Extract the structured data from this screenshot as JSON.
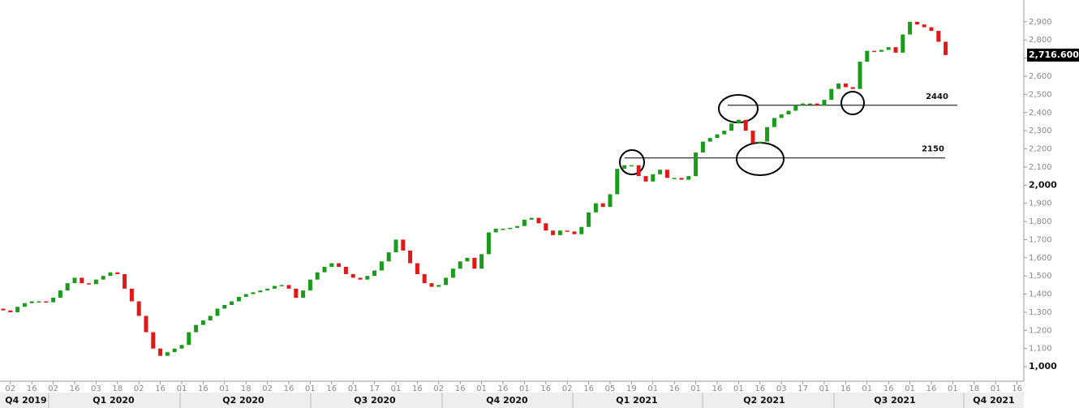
{
  "chart_data": {
    "type": "candlestick",
    "categories": [
      null,
      "02",
      null,
      null,
      "16",
      null,
      null,
      "02",
      null,
      null,
      "16",
      null,
      null,
      "03",
      null,
      null,
      "18",
      null,
      null,
      "02",
      null,
      null,
      "16",
      null,
      null,
      "01",
      null,
      null,
      "16",
      null,
      null,
      "01",
      null,
      null,
      "18",
      null,
      null,
      "02",
      null,
      null,
      "16",
      null,
      null,
      "01",
      null,
      null,
      "16",
      null,
      null,
      "01",
      null,
      null,
      "17",
      null,
      null,
      "01",
      null,
      null,
      "16",
      null,
      null,
      "02",
      null,
      null,
      "16",
      null,
      null,
      "01",
      null,
      null,
      "16",
      null,
      null,
      "01",
      null,
      null,
      "16",
      null,
      null,
      "02",
      null,
      null,
      "16",
      null,
      null,
      "05",
      null,
      null,
      "19",
      null,
      null,
      "01",
      null,
      null,
      "16",
      null,
      null,
      "01",
      null,
      null,
      "16",
      null,
      null,
      "01",
      null,
      null,
      "16",
      null,
      null,
      "03",
      null,
      null,
      "17",
      null,
      null,
      "01",
      null,
      null,
      "16",
      null,
      null,
      "01",
      null,
      null,
      "16",
      null,
      null,
      "01",
      null,
      null,
      "16",
      null,
      null,
      "01",
      null,
      null,
      "18",
      null,
      null,
      "01",
      null,
      null,
      "16",
      null
    ],
    "open": [
      1320,
      1310,
      1300,
      1330,
      1350,
      1360,
      1360,
      1355,
      1380,
      1420,
      1460,
      1490,
      1460,
      1455,
      1480,
      1500,
      1520,
      1510,
      1430,
      1360,
      1280,
      1190,
      1100,
      1060,
      1080,
      1100,
      1120,
      1190,
      1230,
      1255,
      1280,
      1320,
      1340,
      1360,
      1385,
      1400,
      1410,
      1420,
      1430,
      1445,
      1450,
      1430,
      1380,
      1420,
      1480,
      1520,
      1550,
      1570,
      1550,
      1510,
      1490,
      1480,
      1500,
      1530,
      1580,
      1630,
      1700,
      1640,
      1570,
      1510,
      1460,
      1440,
      1450,
      1490,
      1540,
      1580,
      1600,
      1540,
      1620,
      1740,
      1760,
      1760,
      1765,
      1775,
      1810,
      1820,
      1790,
      1750,
      1725,
      1750,
      1745,
      1730,
      1770,
      1850,
      1900,
      1880,
      1950,
      2090,
      2110,
      2110,
      2050,
      2020,
      2060,
      2085,
      2040,
      2040,
      2030,
      2050,
      2180,
      2240,
      2260,
      2280,
      2300,
      2340,
      2360,
      2300,
      2230,
      2240,
      2320,
      2370,
      2390,
      2410,
      2440,
      2450,
      2450,
      2440,
      2470,
      2530,
      2560,
      2540,
      2530,
      2680,
      2740,
      2735,
      2745,
      2760,
      2730,
      2830,
      2900,
      2885,
      2870,
      2850,
      2790,
      null,
      null,
      null,
      null,
      null,
      null,
      null,
      null,
      null,
      null,
      null
    ],
    "close": [
      1310,
      1300,
      1330,
      1350,
      1360,
      1360,
      1355,
      1380,
      1420,
      1460,
      1490,
      1460,
      1455,
      1480,
      1500,
      1520,
      1510,
      1430,
      1360,
      1280,
      1190,
      1100,
      1060,
      1080,
      1100,
      1120,
      1190,
      1230,
      1255,
      1280,
      1320,
      1340,
      1360,
      1385,
      1400,
      1410,
      1420,
      1430,
      1445,
      1450,
      1430,
      1380,
      1420,
      1480,
      1520,
      1550,
      1570,
      1550,
      1510,
      1490,
      1480,
      1500,
      1530,
      1580,
      1630,
      1700,
      1640,
      1570,
      1510,
      1460,
      1440,
      1450,
      1490,
      1540,
      1580,
      1600,
      1540,
      1620,
      1740,
      1760,
      1760,
      1765,
      1775,
      1810,
      1820,
      1790,
      1750,
      1725,
      1750,
      1745,
      1730,
      1770,
      1850,
      1900,
      1880,
      1950,
      2090,
      2110,
      2110,
      2050,
      2020,
      2060,
      2085,
      2040,
      2040,
      2030,
      2050,
      2180,
      2240,
      2260,
      2280,
      2300,
      2340,
      2360,
      2300,
      2230,
      2240,
      2320,
      2370,
      2390,
      2410,
      2440,
      2450,
      2450,
      2440,
      2470,
      2530,
      2560,
      2540,
      2530,
      2680,
      2740,
      2735,
      2745,
      2760,
      2730,
      2830,
      2900,
      2885,
      2870,
      2850,
      2790,
      2716.6,
      null,
      null,
      null,
      null,
      null,
      null,
      null,
      null,
      null,
      null,
      null
    ],
    "up_color": "#1a9c1a",
    "down_color": "#e01818",
    "ylim": [
      920,
      3020
    ],
    "yticks": [
      {
        "value": 1000,
        "label": "1,000"
      },
      {
        "value": 1100,
        "label": "1,100"
      },
      {
        "value": 1200,
        "label": "1,200"
      },
      {
        "value": 1300,
        "label": "1,300"
      },
      {
        "value": 1400,
        "label": "1,400"
      },
      {
        "value": 1500,
        "label": "1,500"
      },
      {
        "value": 1600,
        "label": "1,600"
      },
      {
        "value": 1700,
        "label": "1,700"
      },
      {
        "value": 1800,
        "label": "1,800"
      },
      {
        "value": 1900,
        "label": "1,900"
      },
      {
        "value": 2000,
        "label": "2,000"
      },
      {
        "value": 2100,
        "label": "2,100"
      },
      {
        "value": 2200,
        "label": "2,200"
      },
      {
        "value": 2300,
        "label": "2,300"
      },
      {
        "value": 2400,
        "label": "2,400"
      },
      {
        "value": 2500,
        "label": "2,500"
      },
      {
        "value": 2600,
        "label": "2,600"
      },
      {
        "value": 2700,
        "label": "2,700"
      },
      {
        "value": 2800,
        "label": "2,800"
      },
      {
        "value": 2900,
        "label": "2,900"
      }
    ],
    "last_price": {
      "value": 2716.6,
      "label": "2,716.6000"
    },
    "levels": [
      2440,
      2150
    ],
    "quarter_labels": [
      "Q4 2019",
      "Q1 2020",
      "Q2 2020",
      "Q3 2020",
      "Q4 2020",
      "Q1 2021",
      "Q2 2021",
      "Q3 2021",
      "Q4 2021"
    ]
  }
}
